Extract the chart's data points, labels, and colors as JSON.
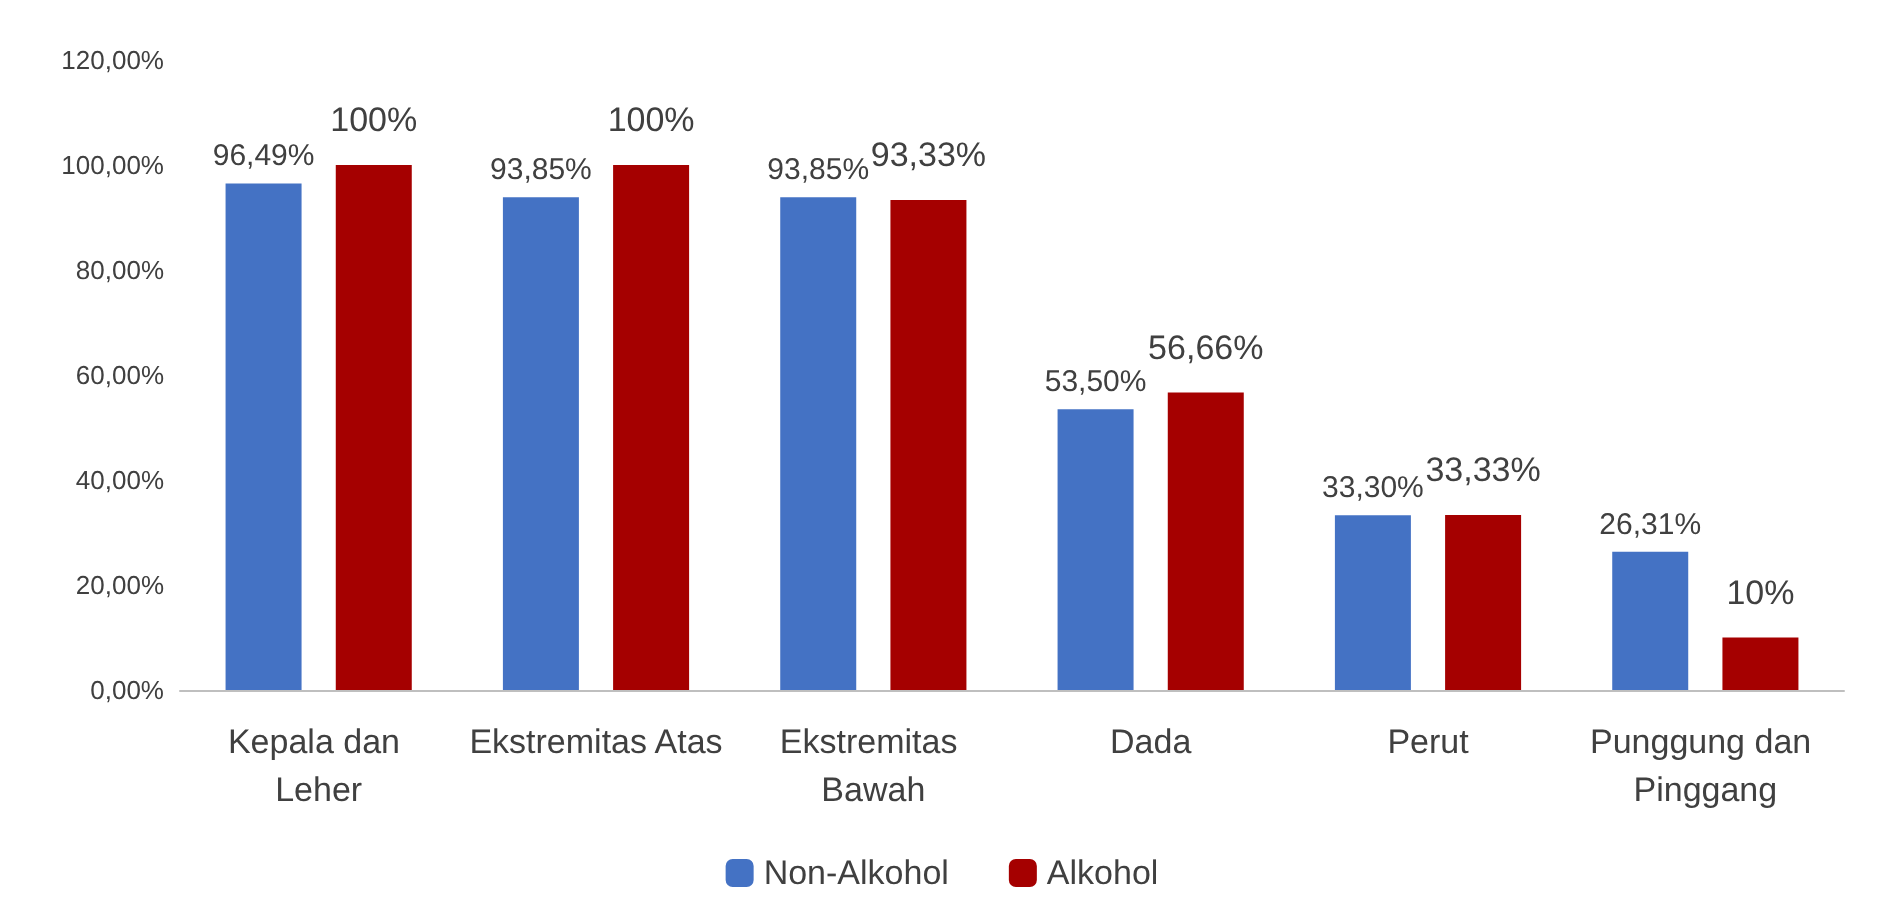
{
  "chart_data": {
    "type": "bar",
    "categories": [
      "Kepala dan Leher",
      "Ekstremitas Atas",
      "Ekstremitas Bawah",
      "Dada",
      "Perut",
      "Punggung dan Pinggang"
    ],
    "series": [
      {
        "name": "Non-Alkohol",
        "color": "#4472c4",
        "values": [
          96.49,
          93.85,
          93.85,
          53.5,
          33.3,
          26.31
        ],
        "value_labels": [
          "96,49%",
          "93,85%",
          "93,85%",
          "53,50%",
          "33,30%",
          "26,31%"
        ]
      },
      {
        "name": "Alkohol",
        "color": "#a50000",
        "values": [
          100,
          100,
          93.33,
          56.66,
          33.33,
          10
        ],
        "value_labels": [
          "100%",
          "100%",
          "93,33%",
          "56,66%",
          "33,33%",
          "10%"
        ]
      }
    ],
    "ylim": [
      0,
      120
    ],
    "yticks": [
      {
        "value": 0,
        "label": "0,00%"
      },
      {
        "value": 20,
        "label": "20,00%"
      },
      {
        "value": 40,
        "label": "40,00%"
      },
      {
        "value": 60,
        "label": "60,00%"
      },
      {
        "value": 80,
        "label": "80,00%"
      },
      {
        "value": 100,
        "label": "100,00%"
      },
      {
        "value": 120,
        "label": "120,00%"
      }
    ],
    "grid": false,
    "legend": "bottom"
  }
}
